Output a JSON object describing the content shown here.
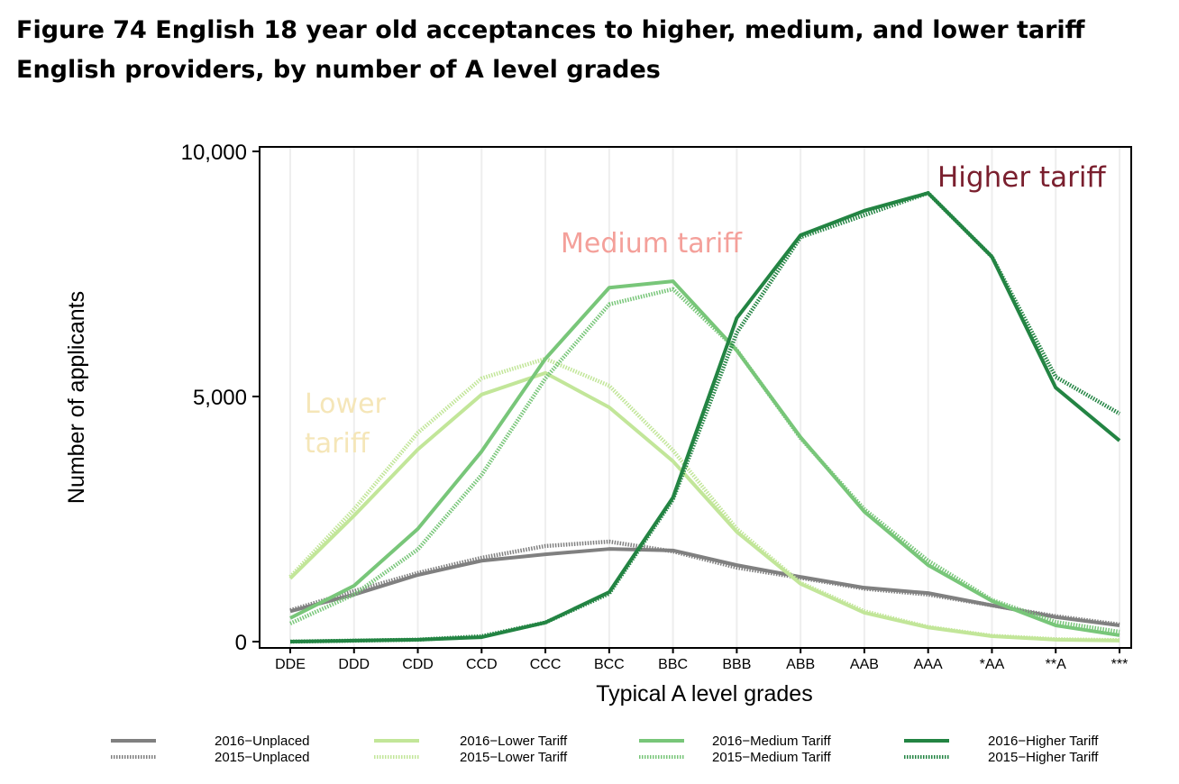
{
  "chart_data": {
    "type": "line",
    "title": "Figure 74 English 18 year old acceptances to higher, medium, and lower tariff English providers, by number of A level grades",
    "xlabel": "Typical A level grades",
    "ylabel": "Number of applicants",
    "ylim": [
      0,
      10000
    ],
    "yticks": [
      "0",
      "5,000",
      "10,000"
    ],
    "ytick_values": [
      0,
      5000,
      10000
    ],
    "grid": "vertical",
    "legend": "bottom",
    "categories": [
      "DDE",
      "DDD",
      "CDD",
      "CCD",
      "CCC",
      "BCC",
      "BBC",
      "BBB",
      "ABB",
      "AAB",
      "AAA",
      "*AA",
      "**A",
      "***"
    ],
    "series": [
      {
        "name": "2016−Unplaced",
        "color": "#808080",
        "style": "solid",
        "values": [
          620,
          960,
          1360,
          1650,
          1780,
          1890,
          1860,
          1560,
          1320,
          1100,
          990,
          740,
          500,
          330
        ]
      },
      {
        "name": "2015−Unplaced",
        "color": "#808080",
        "style": "dotted",
        "values": [
          640,
          1030,
          1400,
          1710,
          1950,
          2040,
          1840,
          1510,
          1300,
          1080,
          960,
          740,
          520,
          350
        ]
      },
      {
        "name": "2016−Lower Tariff",
        "color": "#c2e699",
        "style": "solid",
        "values": [
          1290,
          2570,
          3920,
          5040,
          5480,
          4780,
          3680,
          2240,
          1180,
          590,
          290,
          110,
          40,
          20
        ]
      },
      {
        "name": "2015−Lower Tariff",
        "color": "#c2e699",
        "style": "dotted",
        "values": [
          1320,
          2700,
          4260,
          5370,
          5770,
          5220,
          3900,
          2300,
          1200,
          620,
          300,
          120,
          50,
          30
        ]
      },
      {
        "name": "2016−Medium Tariff",
        "color": "#78c679",
        "style": "solid",
        "values": [
          480,
          1140,
          2300,
          3880,
          5770,
          7220,
          7350,
          5940,
          4170,
          2650,
          1560,
          830,
          330,
          130
        ]
      },
      {
        "name": "2015−Medium Tariff",
        "color": "#78c679",
        "style": "dotted",
        "values": [
          370,
          960,
          1880,
          3400,
          5370,
          6880,
          7190,
          5950,
          4150,
          2700,
          1650,
          850,
          400,
          200
        ]
      },
      {
        "name": "2016−Higher Tariff",
        "color": "#238443",
        "style": "solid",
        "values": [
          0,
          20,
          40,
          90,
          390,
          1010,
          2940,
          6600,
          8290,
          8790,
          9150,
          7850,
          5180,
          4100
        ]
      },
      {
        "name": "2015−Higher Tariff",
        "color": "#238443",
        "style": "dotted",
        "values": [
          0,
          20,
          40,
          110,
          390,
          980,
          2900,
          6300,
          8250,
          8700,
          9150,
          7850,
          5400,
          4650
        ]
      }
    ],
    "annotations": [
      {
        "text": "Higher tariff",
        "color": "#7a1f2e"
      },
      {
        "text": "Medium tariff",
        "color": "#f4a09a"
      },
      {
        "text": "Lower tariff",
        "lines": [
          "Lower",
          "tariff"
        ],
        "color": "#f5e6b8"
      }
    ]
  }
}
